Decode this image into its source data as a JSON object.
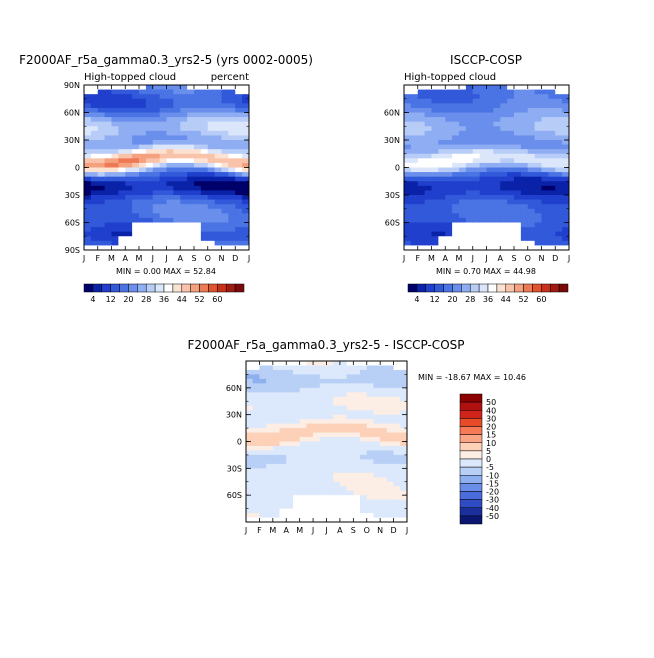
{
  "chart_data": [
    {
      "type": "heatmap",
      "title": "F2000AF_r5a_gamma0.3_yrs2-5 (yrs 0002-0005)",
      "subtitle_left": "High-topped cloud",
      "subtitle_right": "percent",
      "x_ticks": [
        "J",
        "F",
        "M",
        "A",
        "M",
        "J",
        "J",
        "A",
        "S",
        "O",
        "N",
        "D",
        "J"
      ],
      "y_ticks": [
        "90N",
        "60N",
        "30N",
        "0",
        "30S",
        "60S",
        "90S"
      ],
      "ylim": [
        -90,
        90
      ],
      "stats_text": "MIN =   0.00 MAX =  52.84",
      "min": 0.0,
      "max": 52.84,
      "colorbar_labels": [
        "4",
        "12",
        "20",
        "28",
        "36",
        "44",
        "52",
        "60"
      ]
    },
    {
      "type": "heatmap",
      "title": "ISCCP-COSP",
      "subtitle_left": "High-topped cloud",
      "x_ticks": [
        "J",
        "F",
        "M",
        "A",
        "M",
        "J",
        "J",
        "A",
        "S",
        "O",
        "N",
        "D",
        "J"
      ],
      "y_ticks": [
        "60N",
        "30N",
        "0",
        "30S",
        "60S"
      ],
      "ylim": [
        -90,
        90
      ],
      "stats_text": "MIN =   0.70 MAX =  44.98",
      "min": 0.7,
      "max": 44.98,
      "colorbar_labels": [
        "4",
        "12",
        "20",
        "28",
        "36",
        "44",
        "52",
        "60"
      ]
    },
    {
      "type": "heatmap",
      "title": "F2000AF_r5a_gamma0.3_yrs2-5 - ISCCP-COSP",
      "x_ticks": [
        "J",
        "F",
        "M",
        "A",
        "M",
        "J",
        "J",
        "A",
        "S",
        "O",
        "N",
        "D",
        "J"
      ],
      "y_ticks": [
        "60N",
        "30N",
        "0",
        "30S",
        "60S"
      ],
      "ylim": [
        -90,
        90
      ],
      "stats_text": "MIN = -18.67 MAX =  10.46",
      "min": -18.67,
      "max": 10.46,
      "colorbar_labels": [
        "50",
        "40",
        "30",
        "20",
        "15",
        "10",
        "5",
        "0",
        "-5",
        "-10",
        "-15",
        "-20",
        "-30",
        "-40",
        "-50"
      ]
    }
  ],
  "colors": {
    "cloud_scale": [
      "#00006b",
      "#0a22a8",
      "#1f3fcc",
      "#3259da",
      "#4a73e4",
      "#6a8eeb",
      "#8fadf2",
      "#b7cdf7",
      "#dbe6fb",
      "#ffffff",
      "#fde2d2",
      "#f9c3aa",
      "#f5a07f",
      "#ee7a55",
      "#e0552f",
      "#c8321a",
      "#a01a0f",
      "#7a0a0a"
    ],
    "diff_scale": [
      "#8b0000",
      "#b01010",
      "#d0241a",
      "#e84a2a",
      "#f57a55",
      "#f9a585",
      "#fdd0b8",
      "#fdeee5",
      "#dce8fb",
      "#b8cff6",
      "#8fb0ef",
      "#6a8ee8",
      "#4a6cdc",
      "#2f4cc4",
      "#1a2e9c",
      "#0a1670"
    ]
  }
}
